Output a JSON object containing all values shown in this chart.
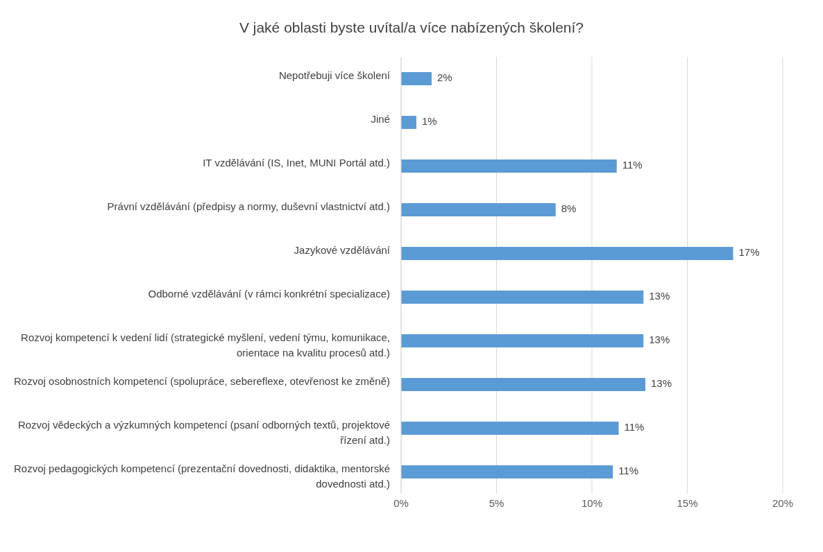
{
  "chart_data": {
    "type": "bar",
    "orientation": "horizontal",
    "title": "V jaké oblasti byste uvítal/a více nabízených školení?",
    "categories": [
      "Nepotřebuji více školení",
      "Jiné",
      "IT vzdělávání (IS, Inet, MUNI Portál atd.)",
      "Právní vzdělávání (předpisy a normy, duševní vlastnictví atd.)",
      "Jazykové vzdělávání",
      "Odborné vzdělávání (v rámci konkrétní specializace)",
      "Rozvoj kompetencí k vedení lidí (strategické myšlení, vedení týmu, komunikace, orientace na kvalitu procesů atd.)",
      "Rozvoj osobnostních kompetencí (spolupráce, sebereflexe, otevřenost ke změně)",
      "Rozvoj vědeckých a výzkumných kompetencí (psaní odborných textů, projektové řízení atd.)",
      "Rozvoj pedagogických kompetencí (prezentační dovednosti, didaktika, mentorské dovednosti atd.)"
    ],
    "values": [
      1.6,
      0.8,
      11.3,
      8.1,
      17.4,
      12.7,
      12.7,
      12.8,
      11.4,
      11.1
    ],
    "value_labels": [
      "2%",
      "1%",
      "11%",
      "8%",
      "17%",
      "13%",
      "13%",
      "13%",
      "11%",
      "11%"
    ],
    "color": "#5b9bd5",
    "xlim": [
      0,
      20
    ],
    "xticks": [
      {
        "value": 0,
        "label": "0%"
      },
      {
        "value": 5,
        "label": "5%"
      },
      {
        "value": 10,
        "label": "10%"
      },
      {
        "value": 15,
        "label": "15%"
      },
      {
        "value": 20,
        "label": "20%"
      }
    ],
    "grid": "x"
  }
}
